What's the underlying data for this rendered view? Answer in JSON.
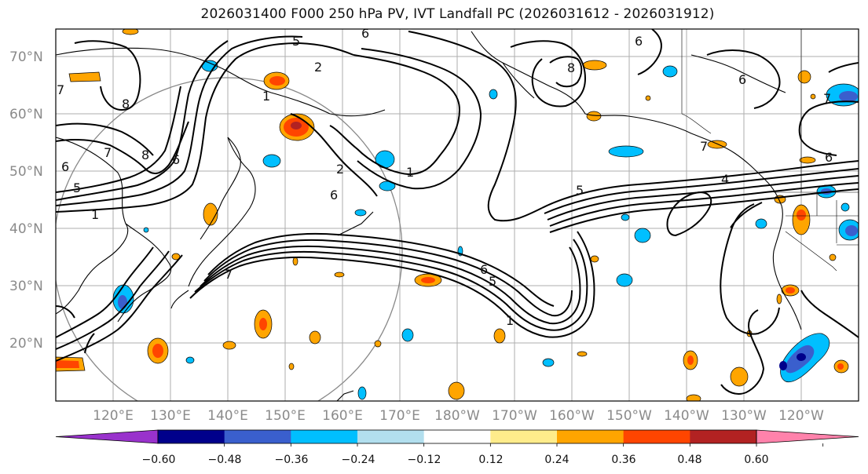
{
  "title": "2026031400 F000 250 hPa PV, IVT Landfall PC (2026031612 - 2026031912)",
  "lat_labels": [
    "70°N",
    "60°N",
    "50°N",
    "40°N",
    "30°N",
    "20°N"
  ],
  "lon_labels": [
    "120°E",
    "130°E",
    "140°E",
    "150°E",
    "160°E",
    "170°E",
    "180°W",
    "170°W",
    "160°W",
    "150°W",
    "140°W",
    "130°W",
    "120°W"
  ],
  "contour_labels": [
    "5",
    "6",
    "2",
    "1",
    "8",
    "6",
    "7",
    "8",
    "6",
    "8",
    "7",
    "5",
    "1",
    "2",
    "6",
    "1",
    "5",
    "6",
    "4",
    "6",
    "7",
    "6",
    "7",
    "5",
    "1",
    "6",
    "7"
  ],
  "colorbar": {
    "ticks": [
      "−0.60",
      "−0.48",
      "−0.36",
      "−0.24",
      "−0.12",
      "0.12",
      "0.24",
      "0.36",
      "0.48",
      "0.60"
    ],
    "colors": [
      "#9932cc",
      "#00008b",
      "#3a5fcd",
      "#00bfff",
      "#b2dfee",
      "#ffffff",
      "#ffec8b",
      "#ffa500",
      "#ff4500",
      "#b22222",
      "#ff82ab"
    ]
  },
  "anomaly_colors": {
    "pos_weak": "#ffa500",
    "pos_mid": "#ff4500",
    "pos_strong": "#b22222",
    "neg_weak": "#00bfff",
    "neg_mid": "#3a5fcd",
    "neg_strong": "#00008b"
  }
}
